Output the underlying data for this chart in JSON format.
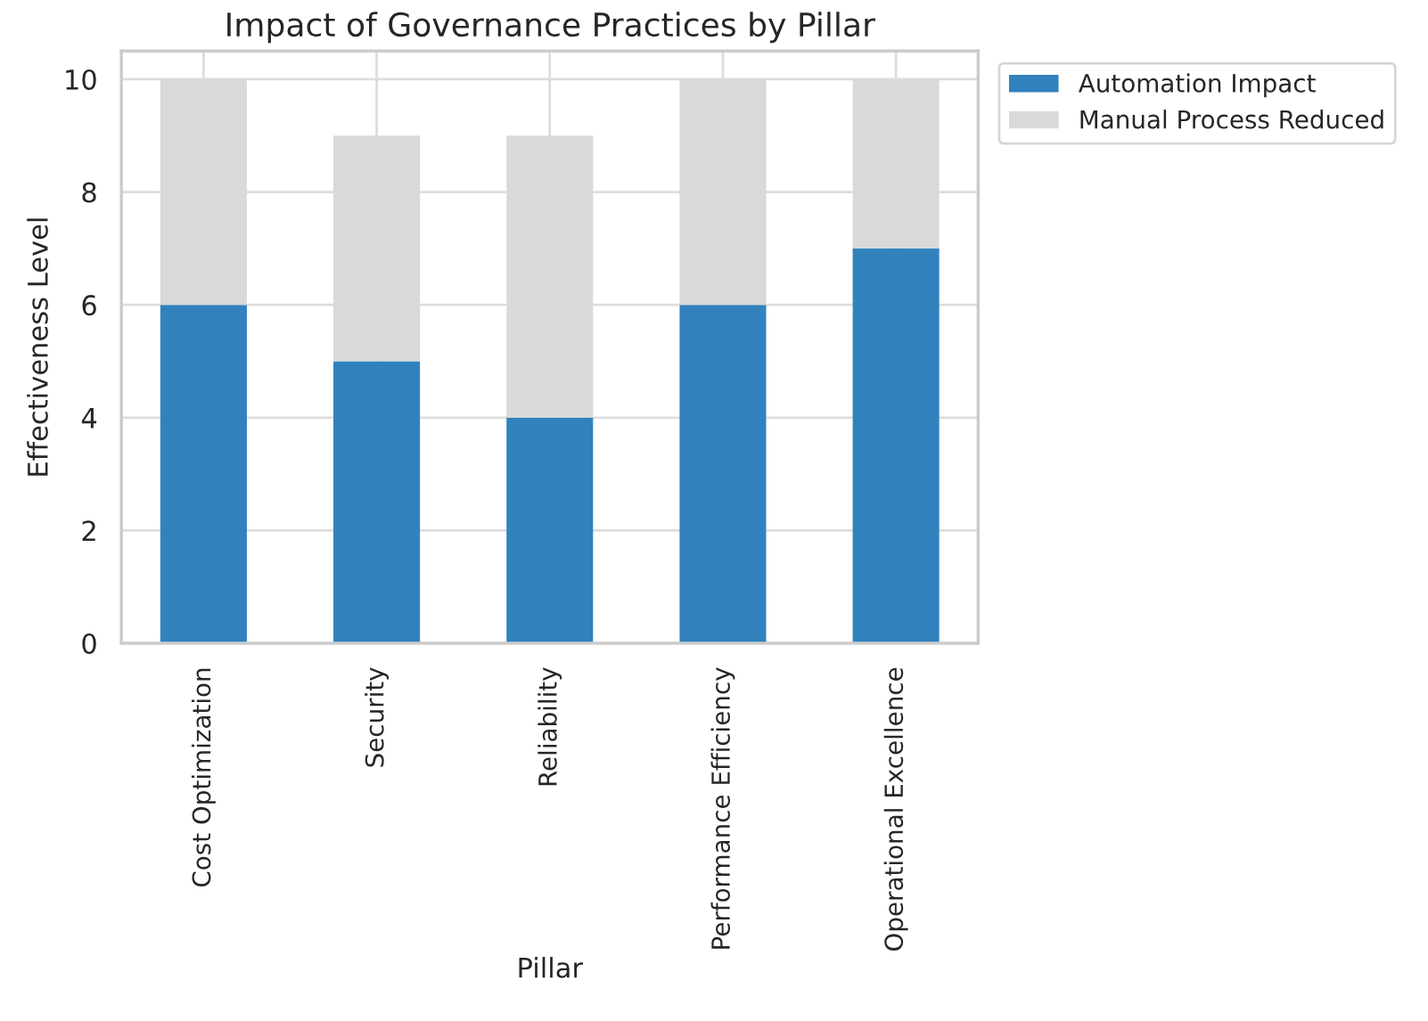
{
  "chart_data": {
    "type": "bar",
    "title": "Impact of Governance Practices by Pillar",
    "xlabel": "Pillar",
    "ylabel": "Effectiveness Level",
    "categories": [
      "Cost Optimization",
      "Security",
      "Reliability",
      "Performance Efficiency",
      "Operational Excellence"
    ],
    "stacked": true,
    "series": [
      {
        "name": "Automation Impact",
        "color": "#3182bd",
        "values": [
          6,
          5,
          4,
          6,
          7
        ]
      },
      {
        "name": "Manual Process Reduced",
        "color": "#d9d9d9",
        "values": [
          4,
          4,
          5,
          4,
          3
        ]
      }
    ],
    "ylim": [
      0,
      10.5
    ],
    "yticks": [
      0,
      2,
      4,
      6,
      8,
      10
    ],
    "grid": true,
    "legend": "top right"
  }
}
